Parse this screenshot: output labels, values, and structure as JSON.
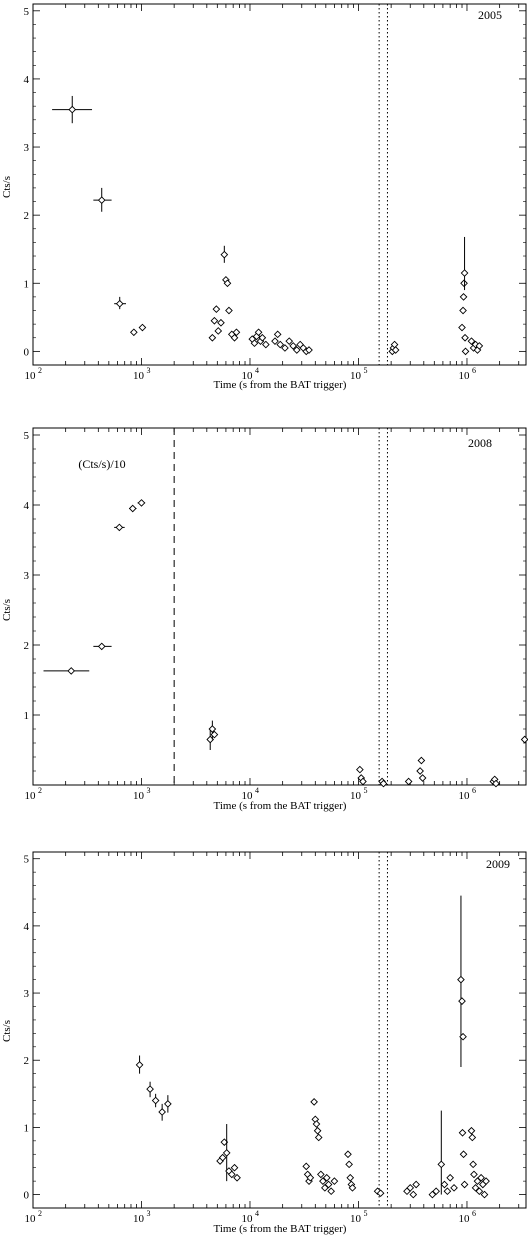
{
  "chart_data": [
    {
      "type": "scatter",
      "title": "",
      "year_label": "2005",
      "xlabel": "Time (s from the BAT trigger)",
      "ylabel": "Cts/s",
      "x_scale": "log",
      "xlim": [
        100,
        3500000
      ],
      "ylim": [
        -0.2,
        5.1
      ],
      "yticks": [
        "0",
        "1",
        "2",
        "3",
        "4",
        "5"
      ],
      "xticks": [
        {
          "base": "10",
          "exp": "2"
        },
        {
          "base": "10",
          "exp": "3"
        },
        {
          "base": "10",
          "exp": "4"
        },
        {
          "base": "10",
          "exp": "5"
        },
        {
          "base": "10",
          "exp": "6"
        }
      ],
      "vlines": [
        {
          "x": 155000,
          "style": "dotted"
        },
        {
          "x": 185000,
          "style": "dotted"
        }
      ],
      "annotation": "",
      "series": [
        {
          "points": [
            {
              "x": 230,
              "y": 3.55,
              "xlo": 150,
              "xhi": 350,
              "ylo": 3.35,
              "yhi": 3.75
            },
            {
              "x": 430,
              "y": 2.22,
              "xlo": 360,
              "xhi": 530,
              "ylo": 2.05,
              "yhi": 2.4
            },
            {
              "x": 630,
              "y": 0.7,
              "xlo": 560,
              "xhi": 720,
              "ylo": 0.62,
              "yhi": 0.8
            },
            {
              "x": 850,
              "y": 0.28
            },
            {
              "x": 1020,
              "y": 0.35
            },
            {
              "x": 4500,
              "y": 0.2
            },
            {
              "x": 4700,
              "y": 0.45
            },
            {
              "x": 4900,
              "y": 0.62
            },
            {
              "x": 5100,
              "y": 0.3
            },
            {
              "x": 5400,
              "y": 0.42
            },
            {
              "x": 5800,
              "y": 1.42,
              "ylo": 1.3,
              "yhi": 1.55
            },
            {
              "x": 6000,
              "y": 1.05
            },
            {
              "x": 6200,
              "y": 1.0
            },
            {
              "x": 6400,
              "y": 0.6
            },
            {
              "x": 6800,
              "y": 0.25
            },
            {
              "x": 7200,
              "y": 0.2
            },
            {
              "x": 7500,
              "y": 0.28
            },
            {
              "x": 10500,
              "y": 0.18
            },
            {
              "x": 11000,
              "y": 0.12
            },
            {
              "x": 11500,
              "y": 0.22
            },
            {
              "x": 12000,
              "y": 0.28
            },
            {
              "x": 12500,
              "y": 0.15
            },
            {
              "x": 13000,
              "y": 0.2
            },
            {
              "x": 14000,
              "y": 0.1
            },
            {
              "x": 17000,
              "y": 0.15
            },
            {
              "x": 18000,
              "y": 0.25
            },
            {
              "x": 19000,
              "y": 0.1
            },
            {
              "x": 21000,
              "y": 0.05
            },
            {
              "x": 23000,
              "y": 0.15
            },
            {
              "x": 25000,
              "y": 0.08
            },
            {
              "x": 27000,
              "y": 0.02
            },
            {
              "x": 29000,
              "y": 0.1
            },
            {
              "x": 31000,
              "y": 0.05
            },
            {
              "x": 33000,
              "y": 0.0
            },
            {
              "x": 35000,
              "y": 0.02
            },
            {
              "x": 205000,
              "y": 0.0
            },
            {
              "x": 210000,
              "y": 0.05
            },
            {
              "x": 215000,
              "y": 0.1
            },
            {
              "x": 220000,
              "y": 0.02
            },
            {
              "x": 900000,
              "y": 0.35
            },
            {
              "x": 920000,
              "y": 0.6
            },
            {
              "x": 930000,
              "y": 0.8
            },
            {
              "x": 940000,
              "y": 1.0
            },
            {
              "x": 950000,
              "y": 1.15,
              "ylo": 0.9,
              "yhi": 1.68
            },
            {
              "x": 960000,
              "y": 0.2
            },
            {
              "x": 970000,
              "y": 0.0
            },
            {
              "x": 1100000,
              "y": 0.15
            },
            {
              "x": 1150000,
              "y": 0.05
            },
            {
              "x": 1200000,
              "y": 0.1
            },
            {
              "x": 1250000,
              "y": 0.02
            },
            {
              "x": 1300000,
              "y": 0.08
            }
          ]
        }
      ]
    },
    {
      "type": "scatter",
      "title": "",
      "year_label": "2008",
      "xlabel": "Time (s from the BAT trigger)",
      "ylabel": "Cts/s",
      "x_scale": "log",
      "xlim": [
        100,
        3500000
      ],
      "ylim": [
        0.0,
        5.1
      ],
      "yticks": [
        "1",
        "2",
        "3",
        "4",
        "5"
      ],
      "xticks": [
        {
          "base": "10",
          "exp": "2"
        },
        {
          "base": "10",
          "exp": "3"
        },
        {
          "base": "10",
          "exp": "4"
        },
        {
          "base": "10",
          "exp": "5"
        },
        {
          "base": "10",
          "exp": "6"
        }
      ],
      "vlines": [
        {
          "x": 2000,
          "style": "dashed"
        },
        {
          "x": 155000,
          "style": "dotted"
        },
        {
          "x": 185000,
          "style": "dotted"
        }
      ],
      "annotation": "(Cts/s)/10",
      "series": [
        {
          "points": [
            {
              "x": 225,
              "y": 1.63,
              "xlo": 125,
              "xhi": 330
            },
            {
              "x": 430,
              "y": 1.98,
              "xlo": 360,
              "xhi": 530
            },
            {
              "x": 625,
              "y": 3.68,
              "xlo": 560,
              "xhi": 700
            },
            {
              "x": 830,
              "y": 3.95,
              "xlo": 770,
              "xhi": 900
            },
            {
              "x": 1000,
              "y": 4.03,
              "xlo": 920,
              "xhi": 1080
            },
            {
              "x": 4300,
              "y": 0.65,
              "ylo": 0.5,
              "yhi": 0.8
            },
            {
              "x": 4500,
              "y": 0.8,
              "ylo": 0.65,
              "yhi": 0.92
            },
            {
              "x": 4700,
              "y": 0.72
            },
            {
              "x": 103000,
              "y": 0.22
            },
            {
              "x": 106000,
              "y": 0.1
            },
            {
              "x": 110000,
              "y": 0.05
            },
            {
              "x": 165000,
              "y": 0.05
            },
            {
              "x": 170000,
              "y": 0.02
            },
            {
              "x": 290000,
              "y": 0.05
            },
            {
              "x": 370000,
              "y": 0.2
            },
            {
              "x": 380000,
              "y": 0.35
            },
            {
              "x": 390000,
              "y": 0.1
            },
            {
              "x": 1750000,
              "y": 0.05
            },
            {
              "x": 1800000,
              "y": 0.08
            },
            {
              "x": 1850000,
              "y": 0.02
            },
            {
              "x": 3400000,
              "y": 0.65
            }
          ]
        }
      ]
    },
    {
      "type": "scatter",
      "title": "",
      "year_label": "2009",
      "xlabel": "Time (s from the BAT trigger)",
      "ylabel": "Cts/s",
      "x_scale": "log",
      "xlim": [
        100,
        3500000
      ],
      "ylim": [
        -0.2,
        5.1
      ],
      "yticks": [
        "0",
        "1",
        "2",
        "3",
        "4",
        "5"
      ],
      "xticks": [
        {
          "base": "10",
          "exp": "2"
        },
        {
          "base": "10",
          "exp": "3"
        },
        {
          "base": "10",
          "exp": "4"
        },
        {
          "base": "10",
          "exp": "5"
        },
        {
          "base": "10",
          "exp": "6"
        }
      ],
      "vlines": [
        {
          "x": 155000,
          "style": "dotted"
        },
        {
          "x": 185000,
          "style": "dotted"
        }
      ],
      "annotation": "",
      "series": [
        {
          "points": [
            {
              "x": 960,
              "y": 1.93,
              "ylo": 1.8,
              "yhi": 2.07
            },
            {
              "x": 1200,
              "y": 1.57,
              "ylo": 1.45,
              "yhi": 1.68
            },
            {
              "x": 1350,
              "y": 1.4,
              "ylo": 1.3,
              "yhi": 1.5
            },
            {
              "x": 1550,
              "y": 1.23,
              "ylo": 1.1,
              "yhi": 1.35
            },
            {
              "x": 1750,
              "y": 1.35,
              "ylo": 1.22,
              "yhi": 1.48
            },
            {
              "x": 5300,
              "y": 0.5
            },
            {
              "x": 5600,
              "y": 0.55
            },
            {
              "x": 5800,
              "y": 0.78
            },
            {
              "x": 6100,
              "y": 0.62,
              "ylo": 0.2,
              "yhi": 1.05
            },
            {
              "x": 6400,
              "y": 0.35
            },
            {
              "x": 6800,
              "y": 0.3
            },
            {
              "x": 7200,
              "y": 0.4
            },
            {
              "x": 7600,
              "y": 0.25
            },
            {
              "x": 33000,
              "y": 0.42
            },
            {
              "x": 34000,
              "y": 0.3
            },
            {
              "x": 35000,
              "y": 0.2
            },
            {
              "x": 36000,
              "y": 0.25
            },
            {
              "x": 39000,
              "y": 1.38
            },
            {
              "x": 40000,
              "y": 1.12
            },
            {
              "x": 41000,
              "y": 1.05
            },
            {
              "x": 42000,
              "y": 0.95
            },
            {
              "x": 43000,
              "y": 0.85
            },
            {
              "x": 45000,
              "y": 0.3
            },
            {
              "x": 47000,
              "y": 0.2
            },
            {
              "x": 49000,
              "y": 0.1
            },
            {
              "x": 51000,
              "y": 0.25
            },
            {
              "x": 53000,
              "y": 0.15
            },
            {
              "x": 56000,
              "y": 0.05
            },
            {
              "x": 60000,
              "y": 0.2
            },
            {
              "x": 80000,
              "y": 0.6
            },
            {
              "x": 82000,
              "y": 0.45
            },
            {
              "x": 84000,
              "y": 0.25
            },
            {
              "x": 86000,
              "y": 0.15
            },
            {
              "x": 88000,
              "y": 0.1
            },
            {
              "x": 150000,
              "y": 0.05
            },
            {
              "x": 160000,
              "y": 0.02
            },
            {
              "x": 280000,
              "y": 0.05
            },
            {
              "x": 300000,
              "y": 0.1
            },
            {
              "x": 320000,
              "y": 0.0
            },
            {
              "x": 340000,
              "y": 0.15
            },
            {
              "x": 480000,
              "y": 0.0
            },
            {
              "x": 520000,
              "y": 0.05
            },
            {
              "x": 580000,
              "y": 0.45,
              "ylo": 0.0,
              "yhi": 1.25
            },
            {
              "x": 620000,
              "y": 0.15
            },
            {
              "x": 660000,
              "y": 0.05
            },
            {
              "x": 700000,
              "y": 0.25
            },
            {
              "x": 760000,
              "y": 0.1
            },
            {
              "x": 880000,
              "y": 3.2,
              "ylo": 1.9,
              "yhi": 4.45
            },
            {
              "x": 900000,
              "y": 2.88
            },
            {
              "x": 920000,
              "y": 2.35
            },
            {
              "x": 910000,
              "y": 0.92
            },
            {
              "x": 930000,
              "y": 0.6
            },
            {
              "x": 950000,
              "y": 0.15
            },
            {
              "x": 1100000,
              "y": 0.95
            },
            {
              "x": 1120000,
              "y": 0.85
            },
            {
              "x": 1140000,
              "y": 0.45
            },
            {
              "x": 1160000,
              "y": 0.3
            },
            {
              "x": 1200000,
              "y": 0.1
            },
            {
              "x": 1250000,
              "y": 0.2
            },
            {
              "x": 1300000,
              "y": 0.05
            },
            {
              "x": 1350000,
              "y": 0.25
            },
            {
              "x": 1400000,
              "y": 0.15
            },
            {
              "x": 1450000,
              "y": 0.0
            },
            {
              "x": 1500000,
              "y": 0.2
            }
          ]
        }
      ]
    }
  ]
}
